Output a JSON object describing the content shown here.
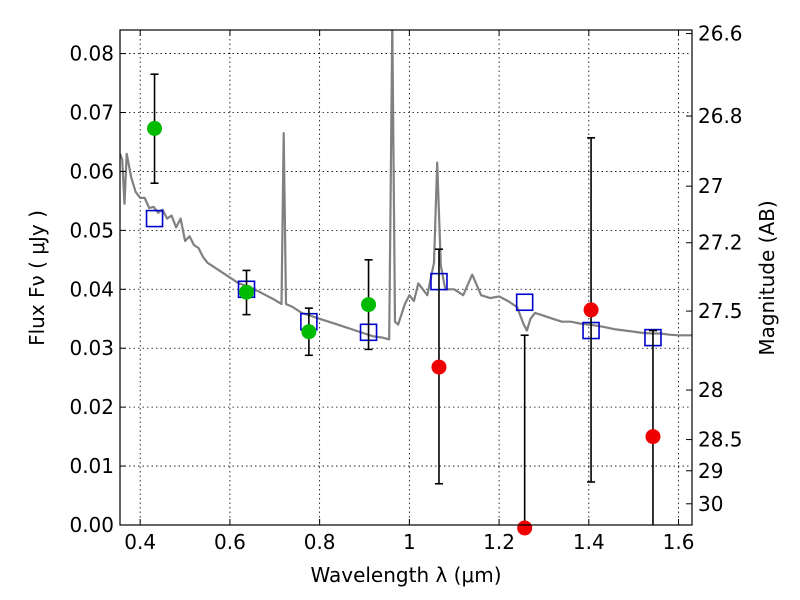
{
  "chart_data": {
    "type": "scatter",
    "title": "",
    "xlabel": "Wavelength  λ (μm)",
    "ylabel": "Flux  Fν  ( μJy )",
    "ylabel_right": "Magnitude (AB)",
    "xlim": [
      0.355,
      1.63
    ],
    "ylim": [
      0.0,
      0.084
    ],
    "x_ticks": [
      0.4,
      0.6,
      0.8,
      1.0,
      1.2,
      1.4,
      1.6
    ],
    "x_tick_labels": [
      "0.4",
      "0.6",
      "0.8",
      "1",
      "1.2",
      "1.4",
      "1.6"
    ],
    "y_ticks": [
      0.0,
      0.01,
      0.02,
      0.03,
      0.04,
      0.05,
      0.06,
      0.07,
      0.08
    ],
    "y_tick_labels": [
      "0.00",
      "0.01",
      "0.02",
      "0.03",
      "0.04",
      "0.05",
      "0.06",
      "0.07",
      "0.08"
    ],
    "right_axis": {
      "tick_labels": [
        "26.6",
        "26.8",
        "27",
        "27.2",
        "27.5",
        "28",
        "28.5",
        "29",
        "30"
      ],
      "tick_flux": [
        0.0834,
        0.0694,
        0.0575,
        0.0479,
        0.0363,
        0.0229,
        0.0145,
        0.0092,
        0.0036
      ]
    },
    "grid": true,
    "colors": {
      "model": "#808080",
      "model_bands": "#0000cc",
      "obs_detected": "#00bb00",
      "obs_low": "#ee0000",
      "errorbar": "#000000"
    },
    "series": [
      {
        "kind": "line",
        "points": [
          [
            0.355,
            0.063
          ],
          [
            0.36,
            0.062
          ],
          [
            0.365,
            0.0545
          ],
          [
            0.37,
            0.063
          ],
          [
            0.38,
            0.059
          ],
          [
            0.39,
            0.0565
          ],
          [
            0.4,
            0.0555
          ],
          [
            0.41,
            0.0555
          ],
          [
            0.42,
            0.0538
          ],
          [
            0.43,
            0.054
          ],
          [
            0.44,
            0.053
          ],
          [
            0.45,
            0.0535
          ],
          [
            0.46,
            0.052
          ],
          [
            0.47,
            0.0525
          ],
          [
            0.48,
            0.0505
          ],
          [
            0.49,
            0.052
          ],
          [
            0.5,
            0.0482
          ],
          [
            0.51,
            0.049
          ],
          [
            0.52,
            0.0475
          ],
          [
            0.53,
            0.047
          ],
          [
            0.54,
            0.0455
          ],
          [
            0.55,
            0.0445
          ],
          [
            0.56,
            0.044
          ],
          [
            0.57,
            0.0435
          ],
          [
            0.58,
            0.043
          ],
          [
            0.59,
            0.0425
          ],
          [
            0.6,
            0.042
          ],
          [
            0.62,
            0.041
          ],
          [
            0.64,
            0.0405
          ],
          [
            0.66,
            0.0398
          ],
          [
            0.68,
            0.039
          ],
          [
            0.7,
            0.0382
          ],
          [
            0.715,
            0.0375
          ],
          [
            0.72,
            0.0665
          ],
          [
            0.725,
            0.0375
          ],
          [
            0.74,
            0.037
          ],
          [
            0.76,
            0.036
          ],
          [
            0.78,
            0.0355
          ],
          [
            0.8,
            0.035
          ],
          [
            0.82,
            0.0345
          ],
          [
            0.84,
            0.034
          ],
          [
            0.86,
            0.0335
          ],
          [
            0.88,
            0.033
          ],
          [
            0.9,
            0.0325
          ],
          [
            0.92,
            0.032
          ],
          [
            0.94,
            0.0318
          ],
          [
            0.955,
            0.0315
          ],
          [
            0.962,
            0.085
          ],
          [
            0.968,
            0.0345
          ],
          [
            0.975,
            0.034
          ],
          [
            0.99,
            0.0375
          ],
          [
            1.0,
            0.039
          ],
          [
            1.01,
            0.038
          ],
          [
            1.02,
            0.041
          ],
          [
            1.04,
            0.039
          ],
          [
            1.055,
            0.0445
          ],
          [
            1.062,
            0.0615
          ],
          [
            1.07,
            0.044
          ],
          [
            1.08,
            0.04
          ],
          [
            1.1,
            0.04
          ],
          [
            1.12,
            0.039
          ],
          [
            1.14,
            0.0425
          ],
          [
            1.16,
            0.039
          ],
          [
            1.18,
            0.0385
          ],
          [
            1.2,
            0.0388
          ],
          [
            1.22,
            0.038
          ],
          [
            1.24,
            0.037
          ],
          [
            1.255,
            0.034
          ],
          [
            1.262,
            0.033
          ],
          [
            1.27,
            0.035
          ],
          [
            1.28,
            0.036
          ],
          [
            1.3,
            0.0355
          ],
          [
            1.32,
            0.035
          ],
          [
            1.34,
            0.0345
          ],
          [
            1.36,
            0.0345
          ],
          [
            1.38,
            0.0342
          ],
          [
            1.4,
            0.034
          ],
          [
            1.42,
            0.0338
          ],
          [
            1.44,
            0.0335
          ],
          [
            1.46,
            0.0332
          ],
          [
            1.48,
            0.033
          ],
          [
            1.5,
            0.0328
          ],
          [
            1.52,
            0.0326
          ],
          [
            1.54,
            0.0325
          ],
          [
            1.56,
            0.0325
          ],
          [
            1.58,
            0.0323
          ],
          [
            1.6,
            0.0322
          ],
          [
            1.63,
            0.0322
          ]
        ]
      },
      {
        "kind": "squares",
        "points": [
          [
            0.432,
            0.052
          ],
          [
            0.637,
            0.04
          ],
          [
            0.776,
            0.0345
          ],
          [
            0.909,
            0.0327
          ],
          [
            1.066,
            0.0413
          ],
          [
            1.257,
            0.0378
          ],
          [
            1.405,
            0.033
          ],
          [
            1.543,
            0.0318
          ]
        ]
      },
      {
        "kind": "errorbar-points",
        "points": [
          {
            "x": 0.432,
            "y": 0.0673,
            "lo": 0.058,
            "hi": 0.0765,
            "color": "green"
          },
          {
            "x": 0.637,
            "y": 0.0395,
            "lo": 0.0357,
            "hi": 0.0432,
            "color": "green"
          },
          {
            "x": 0.776,
            "y": 0.0328,
            "lo": 0.0288,
            "hi": 0.0368,
            "color": "green"
          },
          {
            "x": 0.909,
            "y": 0.0374,
            "lo": 0.0298,
            "hi": 0.045,
            "color": "green"
          },
          {
            "x": 1.066,
            "y": 0.0268,
            "lo": 0.007,
            "hi": 0.0468,
            "color": "red"
          },
          {
            "x": 1.257,
            "y": -0.0005,
            "lo": -0.003,
            "hi": 0.0322,
            "color": "red"
          },
          {
            "x": 1.405,
            "y": 0.0365,
            "lo": 0.0073,
            "hi": 0.0657,
            "color": "red"
          },
          {
            "x": 1.543,
            "y": 0.015,
            "lo": -0.003,
            "hi": 0.033,
            "color": "red"
          }
        ]
      }
    ]
  }
}
